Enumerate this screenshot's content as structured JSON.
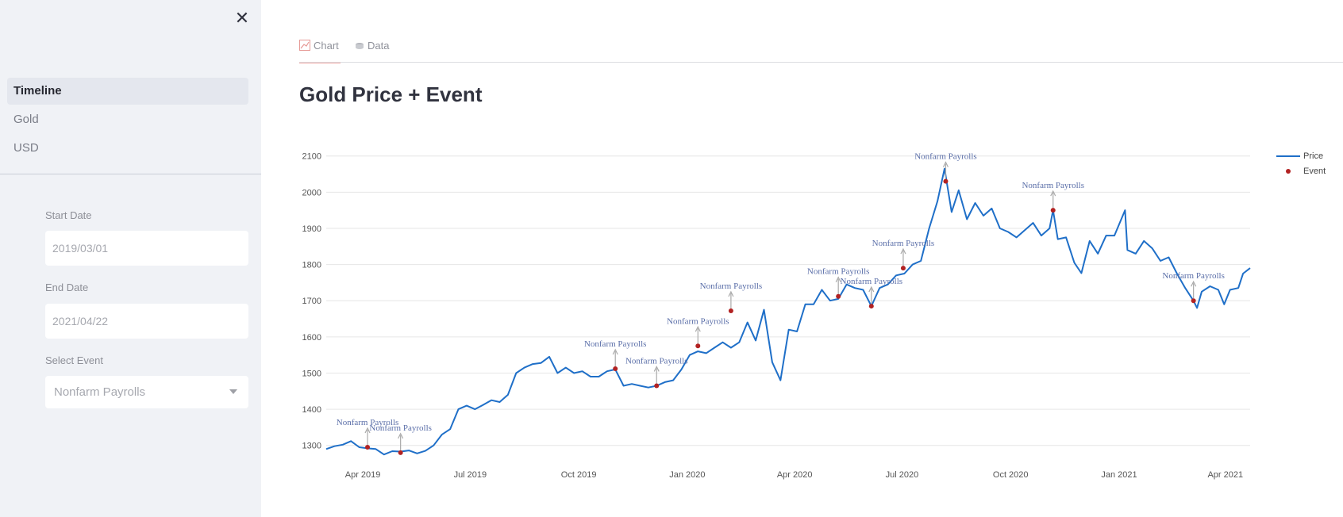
{
  "sidebar": {
    "nav_items": [
      {
        "label": "Timeline",
        "active": true
      },
      {
        "label": "Gold",
        "active": false
      },
      {
        "label": "USD",
        "active": false
      }
    ],
    "start_date": {
      "label": "Start Date",
      "value": "2019/03/01"
    },
    "end_date": {
      "label": "End Date",
      "value": "2021/04/22"
    },
    "event_select": {
      "label": "Select Event",
      "value": "Nonfarm Payrolls"
    }
  },
  "tabs": [
    {
      "label": "Chart",
      "icon": "line-chart-icon"
    },
    {
      "label": "Data",
      "icon": "database-icon"
    }
  ],
  "page_title": "Gold Price + Event",
  "chart_data": {
    "type": "line",
    "title": "Gold Price + Event",
    "xlabel": "",
    "ylabel": "",
    "ylim": [
      1260,
      2130
    ],
    "yticks": [
      1300,
      1400,
      1500,
      1600,
      1700,
      1800,
      1900,
      2000,
      2100
    ],
    "xlim": [
      "2019-03-01",
      "2021-04-22"
    ],
    "xticks": [
      {
        "date": "2019-04-01",
        "label": "Apr 2019"
      },
      {
        "date": "2019-07-01",
        "label": "Jul 2019"
      },
      {
        "date": "2019-10-01",
        "label": "Oct 2019"
      },
      {
        "date": "2020-01-01",
        "label": "Jan 2020"
      },
      {
        "date": "2020-04-01",
        "label": "Apr 2020"
      },
      {
        "date": "2020-07-01",
        "label": "Jul 2020"
      },
      {
        "date": "2020-10-01",
        "label": "Oct 2020"
      },
      {
        "date": "2021-01-01",
        "label": "Jan 2021"
      },
      {
        "date": "2021-04-01",
        "label": "Apr 2021"
      }
    ],
    "grid": true,
    "legend_position": "top-right",
    "series": [
      {
        "name": "Price",
        "color": "#1f6fc8",
        "points": [
          [
            "2019-03-01",
            1290
          ],
          [
            "2019-03-08",
            1298
          ],
          [
            "2019-03-15",
            1302
          ],
          [
            "2019-03-22",
            1312
          ],
          [
            "2019-03-29",
            1295
          ],
          [
            "2019-04-05",
            1292
          ],
          [
            "2019-04-12",
            1290
          ],
          [
            "2019-04-19",
            1275
          ],
          [
            "2019-04-26",
            1284
          ],
          [
            "2019-05-03",
            1283
          ],
          [
            "2019-05-10",
            1286
          ],
          [
            "2019-05-17",
            1278
          ],
          [
            "2019-05-24",
            1285
          ],
          [
            "2019-05-31",
            1300
          ],
          [
            "2019-06-07",
            1330
          ],
          [
            "2019-06-14",
            1345
          ],
          [
            "2019-06-21",
            1400
          ],
          [
            "2019-06-28",
            1410
          ],
          [
            "2019-07-05",
            1400
          ],
          [
            "2019-07-12",
            1412
          ],
          [
            "2019-07-19",
            1425
          ],
          [
            "2019-07-26",
            1420
          ],
          [
            "2019-08-02",
            1440
          ],
          [
            "2019-08-09",
            1500
          ],
          [
            "2019-08-16",
            1515
          ],
          [
            "2019-08-23",
            1525
          ],
          [
            "2019-08-30",
            1528
          ],
          [
            "2019-09-06",
            1545
          ],
          [
            "2019-09-13",
            1500
          ],
          [
            "2019-09-20",
            1515
          ],
          [
            "2019-09-27",
            1500
          ],
          [
            "2019-10-04",
            1505
          ],
          [
            "2019-10-11",
            1490
          ],
          [
            "2019-10-18",
            1490
          ],
          [
            "2019-10-25",
            1505
          ],
          [
            "2019-11-01",
            1510
          ],
          [
            "2019-11-08",
            1465
          ],
          [
            "2019-11-15",
            1470
          ],
          [
            "2019-11-22",
            1465
          ],
          [
            "2019-11-29",
            1460
          ],
          [
            "2019-12-06",
            1465
          ],
          [
            "2019-12-13",
            1475
          ],
          [
            "2019-12-20",
            1480
          ],
          [
            "2019-12-27",
            1510
          ],
          [
            "2020-01-03",
            1550
          ],
          [
            "2020-01-10",
            1560
          ],
          [
            "2020-01-17",
            1555
          ],
          [
            "2020-01-24",
            1570
          ],
          [
            "2020-01-31",
            1585
          ],
          [
            "2020-02-07",
            1570
          ],
          [
            "2020-02-14",
            1585
          ],
          [
            "2020-02-21",
            1640
          ],
          [
            "2020-02-28",
            1590
          ],
          [
            "2020-03-06",
            1675
          ],
          [
            "2020-03-13",
            1530
          ],
          [
            "2020-03-20",
            1480
          ],
          [
            "2020-03-27",
            1620
          ],
          [
            "2020-04-03",
            1615
          ],
          [
            "2020-04-10",
            1690
          ],
          [
            "2020-04-17",
            1690
          ],
          [
            "2020-04-24",
            1730
          ],
          [
            "2020-05-01",
            1700
          ],
          [
            "2020-05-08",
            1705
          ],
          [
            "2020-05-15",
            1745
          ],
          [
            "2020-05-22",
            1735
          ],
          [
            "2020-05-29",
            1730
          ],
          [
            "2020-06-05",
            1685
          ],
          [
            "2020-06-12",
            1735
          ],
          [
            "2020-06-19",
            1745
          ],
          [
            "2020-06-26",
            1770
          ],
          [
            "2020-07-03",
            1775
          ],
          [
            "2020-07-10",
            1800
          ],
          [
            "2020-07-17",
            1810
          ],
          [
            "2020-07-24",
            1900
          ],
          [
            "2020-07-31",
            1975
          ],
          [
            "2020-08-06",
            2065
          ],
          [
            "2020-08-12",
            1945
          ],
          [
            "2020-08-18",
            2005
          ],
          [
            "2020-08-25",
            1925
          ],
          [
            "2020-09-01",
            1970
          ],
          [
            "2020-09-08",
            1935
          ],
          [
            "2020-09-15",
            1955
          ],
          [
            "2020-09-22",
            1900
          ],
          [
            "2020-09-29",
            1890
          ],
          [
            "2020-10-06",
            1875
          ],
          [
            "2020-10-13",
            1895
          ],
          [
            "2020-10-20",
            1915
          ],
          [
            "2020-10-27",
            1880
          ],
          [
            "2020-11-03",
            1900
          ],
          [
            "2020-11-06",
            1950
          ],
          [
            "2020-11-10",
            1870
          ],
          [
            "2020-11-17",
            1875
          ],
          [
            "2020-11-24",
            1805
          ],
          [
            "2020-11-30",
            1776
          ],
          [
            "2020-12-07",
            1865
          ],
          [
            "2020-12-14",
            1830
          ],
          [
            "2020-12-21",
            1880
          ],
          [
            "2020-12-28",
            1880
          ],
          [
            "2021-01-06",
            1950
          ],
          [
            "2021-01-08",
            1840
          ],
          [
            "2021-01-15",
            1830
          ],
          [
            "2021-01-22",
            1865
          ],
          [
            "2021-01-29",
            1845
          ],
          [
            "2021-02-05",
            1810
          ],
          [
            "2021-02-12",
            1820
          ],
          [
            "2021-02-19",
            1775
          ],
          [
            "2021-02-26",
            1735
          ],
          [
            "2021-03-05",
            1700
          ],
          [
            "2021-03-08",
            1680
          ],
          [
            "2021-03-12",
            1725
          ],
          [
            "2021-03-19",
            1740
          ],
          [
            "2021-03-26",
            1730
          ],
          [
            "2021-03-31",
            1690
          ],
          [
            "2021-04-05",
            1730
          ],
          [
            "2021-04-12",
            1735
          ],
          [
            "2021-04-16",
            1775
          ],
          [
            "2021-04-22",
            1790
          ]
        ]
      },
      {
        "name": "Event",
        "color": "#b22222",
        "points": [
          [
            "2019-04-05",
            1295
          ],
          [
            "2019-05-03",
            1280
          ],
          [
            "2019-11-01",
            1512
          ],
          [
            "2019-12-06",
            1465
          ],
          [
            "2020-01-10",
            1575
          ],
          [
            "2020-02-07",
            1672
          ],
          [
            "2020-05-08",
            1712
          ],
          [
            "2020-06-05",
            1685
          ],
          [
            "2020-07-02",
            1790
          ],
          [
            "2020-08-07",
            2030
          ],
          [
            "2020-11-06",
            1950
          ],
          [
            "2021-03-05",
            1700
          ]
        ]
      }
    ],
    "annotations": [
      {
        "x": "2019-04-05",
        "y": 1295,
        "text": "Nonfarm Payrolls"
      },
      {
        "x": "2019-05-03",
        "y": 1280,
        "text": "Nonfarm Payrolls"
      },
      {
        "x": "2019-11-01",
        "y": 1512,
        "text": "Nonfarm Payrolls"
      },
      {
        "x": "2019-12-06",
        "y": 1465,
        "text": "Nonfarm Payrolls"
      },
      {
        "x": "2020-01-10",
        "y": 1575,
        "text": "Nonfarm Payrolls"
      },
      {
        "x": "2020-02-07",
        "y": 1672,
        "text": "Nonfarm Payrolls"
      },
      {
        "x": "2020-05-08",
        "y": 1712,
        "text": "Nonfarm Payrolls"
      },
      {
        "x": "2020-06-05",
        "y": 1685,
        "text": "Nonfarm Payrolls"
      },
      {
        "x": "2020-07-02",
        "y": 1790,
        "text": "Nonfarm Payrolls"
      },
      {
        "x": "2020-08-07",
        "y": 2030,
        "text": "Nonfarm Payrolls"
      },
      {
        "x": "2020-11-06",
        "y": 1950,
        "text": "Nonfarm Payrolls"
      },
      {
        "x": "2021-03-05",
        "y": 1700,
        "text": "Nonfarm Payrolls"
      }
    ]
  }
}
